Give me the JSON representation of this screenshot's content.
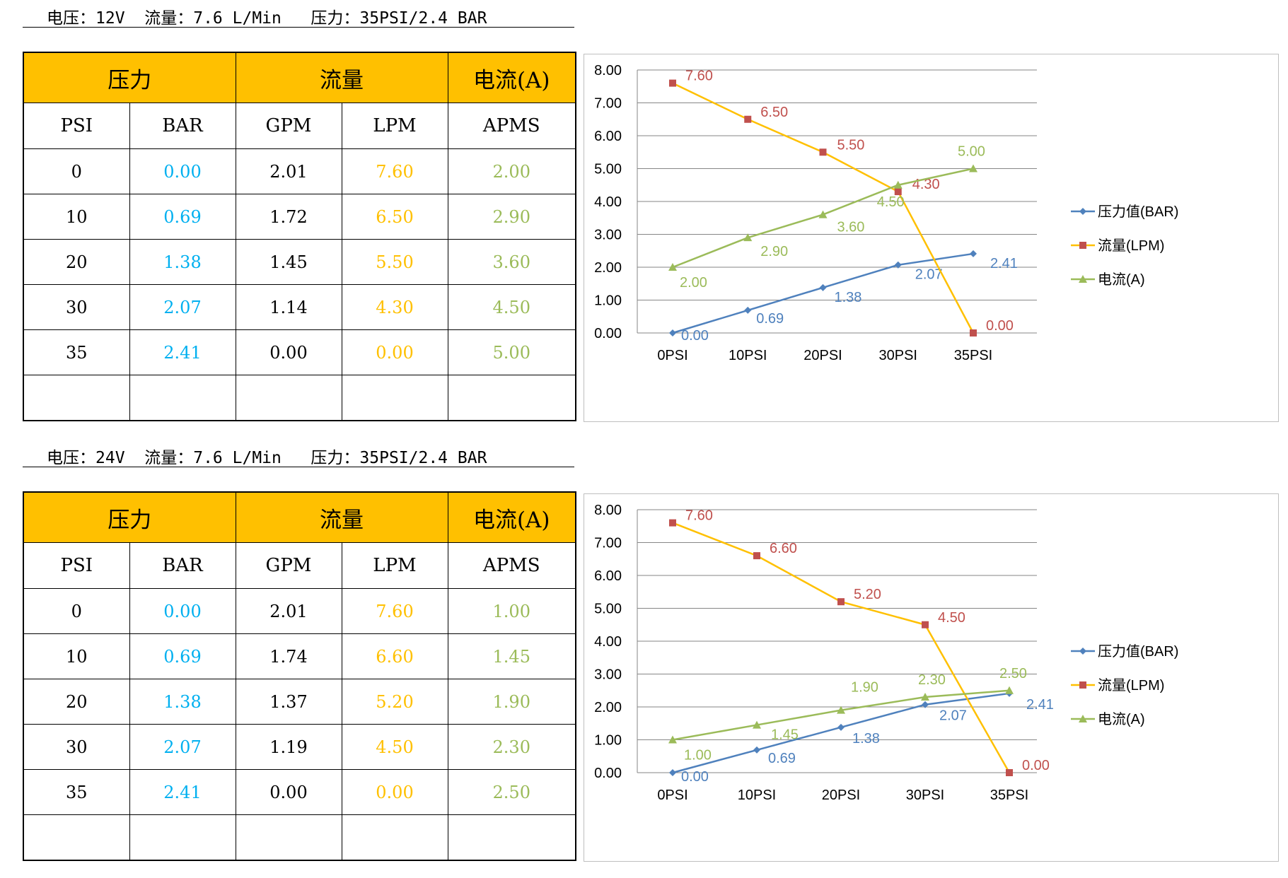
{
  "sections": [
    {
      "heading": "电压：12V  流量：7.6 L/Min   压力：35PSI/2.4 BAR",
      "table": {
        "group_headers": [
          "压力",
          "流量",
          "电流(A)"
        ],
        "sub_headers": [
          "PSI",
          "BAR",
          "GPM",
          "LPM",
          "APMS"
        ],
        "rows": [
          [
            "0",
            "0.00",
            "2.01",
            "7.60",
            "2.00"
          ],
          [
            "10",
            "0.69",
            "1.72",
            "6.50",
            "2.90"
          ],
          [
            "20",
            "1.38",
            "1.45",
            "5.50",
            "3.60"
          ],
          [
            "30",
            "2.07",
            "1.14",
            "4.30",
            "4.50"
          ],
          [
            "35",
            "2.41",
            "0.00",
            "0.00",
            "5.00"
          ]
        ]
      }
    },
    {
      "heading": "电压：24V  流量：7.6 L/Min   压力：35PSI/2.4 BAR",
      "table": {
        "group_headers": [
          "压力",
          "流量",
          "电流(A)"
        ],
        "sub_headers": [
          "PSI",
          "BAR",
          "GPM",
          "LPM",
          "APMS"
        ],
        "rows": [
          [
            "0",
            "0.00",
            "2.01",
            "7.60",
            "1.00"
          ],
          [
            "10",
            "0.69",
            "1.74",
            "6.60",
            "1.45"
          ],
          [
            "20",
            "1.38",
            "1.37",
            "5.20",
            "1.90"
          ],
          [
            "30",
            "2.07",
            "1.19",
            "4.50",
            "2.30"
          ],
          [
            "35",
            "2.41",
            "0.00",
            "0.00",
            "2.50"
          ]
        ]
      }
    }
  ],
  "chart_data": [
    {
      "type": "line",
      "categories": [
        "0PSI",
        "10PSI",
        "20PSI",
        "30PSI",
        "35PSI"
      ],
      "ylim": [
        0,
        8
      ],
      "yticks": [
        "0.00",
        "1.00",
        "2.00",
        "3.00",
        "4.00",
        "5.00",
        "6.00",
        "7.00",
        "8.00"
      ],
      "grid": true,
      "legend": "right",
      "series": [
        {
          "name": "压力值(BAR)",
          "color": "#4f81bd",
          "label_color": "#4f81bd",
          "marker": "diamond",
          "values": [
            0.0,
            0.69,
            1.38,
            2.07,
            2.41
          ],
          "labels": [
            "0.00",
            "0.69",
            "1.38",
            "2.07",
            "2.41"
          ]
        },
        {
          "name": "流量(LPM)",
          "color": "#ffc000",
          "label_color": "#c0504d",
          "marker": "square",
          "values": [
            7.6,
            6.5,
            5.5,
            4.3,
            0.0
          ],
          "labels": [
            "7.60",
            "6.50",
            "5.50",
            "4.30",
            "0.00"
          ]
        },
        {
          "name": "电流(A)",
          "color": "#9bbb59",
          "label_color": "#9bbb59",
          "marker": "triangle",
          "values": [
            2.0,
            2.9,
            3.6,
            4.5,
            5.0
          ],
          "labels": [
            "2.00",
            "2.90",
            "3.60",
            "4.50",
            "5.00"
          ]
        }
      ]
    },
    {
      "type": "line",
      "categories": [
        "0PSI",
        "10PSI",
        "20PSI",
        "30PSI",
        "35PSI"
      ],
      "ylim": [
        0,
        8
      ],
      "yticks": [
        "0.00",
        "1.00",
        "2.00",
        "3.00",
        "4.00",
        "5.00",
        "6.00",
        "7.00",
        "8.00"
      ],
      "grid": true,
      "legend": "right",
      "series": [
        {
          "name": "压力值(BAR)",
          "color": "#4f81bd",
          "label_color": "#4f81bd",
          "marker": "diamond",
          "values": [
            0.0,
            0.69,
            1.38,
            2.07,
            2.41
          ],
          "labels": [
            "0.00",
            "0.69",
            "1.38",
            "2.07",
            "2.41"
          ]
        },
        {
          "name": "流量(LPM)",
          "color": "#ffc000",
          "label_color": "#c0504d",
          "marker": "square",
          "values": [
            7.6,
            6.6,
            5.2,
            4.5,
            0.0
          ],
          "labels": [
            "7.60",
            "6.60",
            "5.20",
            "4.50",
            "0.00"
          ]
        },
        {
          "name": "电流(A)",
          "color": "#9bbb59",
          "label_color": "#9bbb59",
          "marker": "triangle",
          "values": [
            1.0,
            1.45,
            1.9,
            2.3,
            2.5
          ],
          "labels": [
            "1.00",
            "1.45",
            "1.90",
            "2.30",
            "2.50"
          ]
        }
      ]
    }
  ]
}
